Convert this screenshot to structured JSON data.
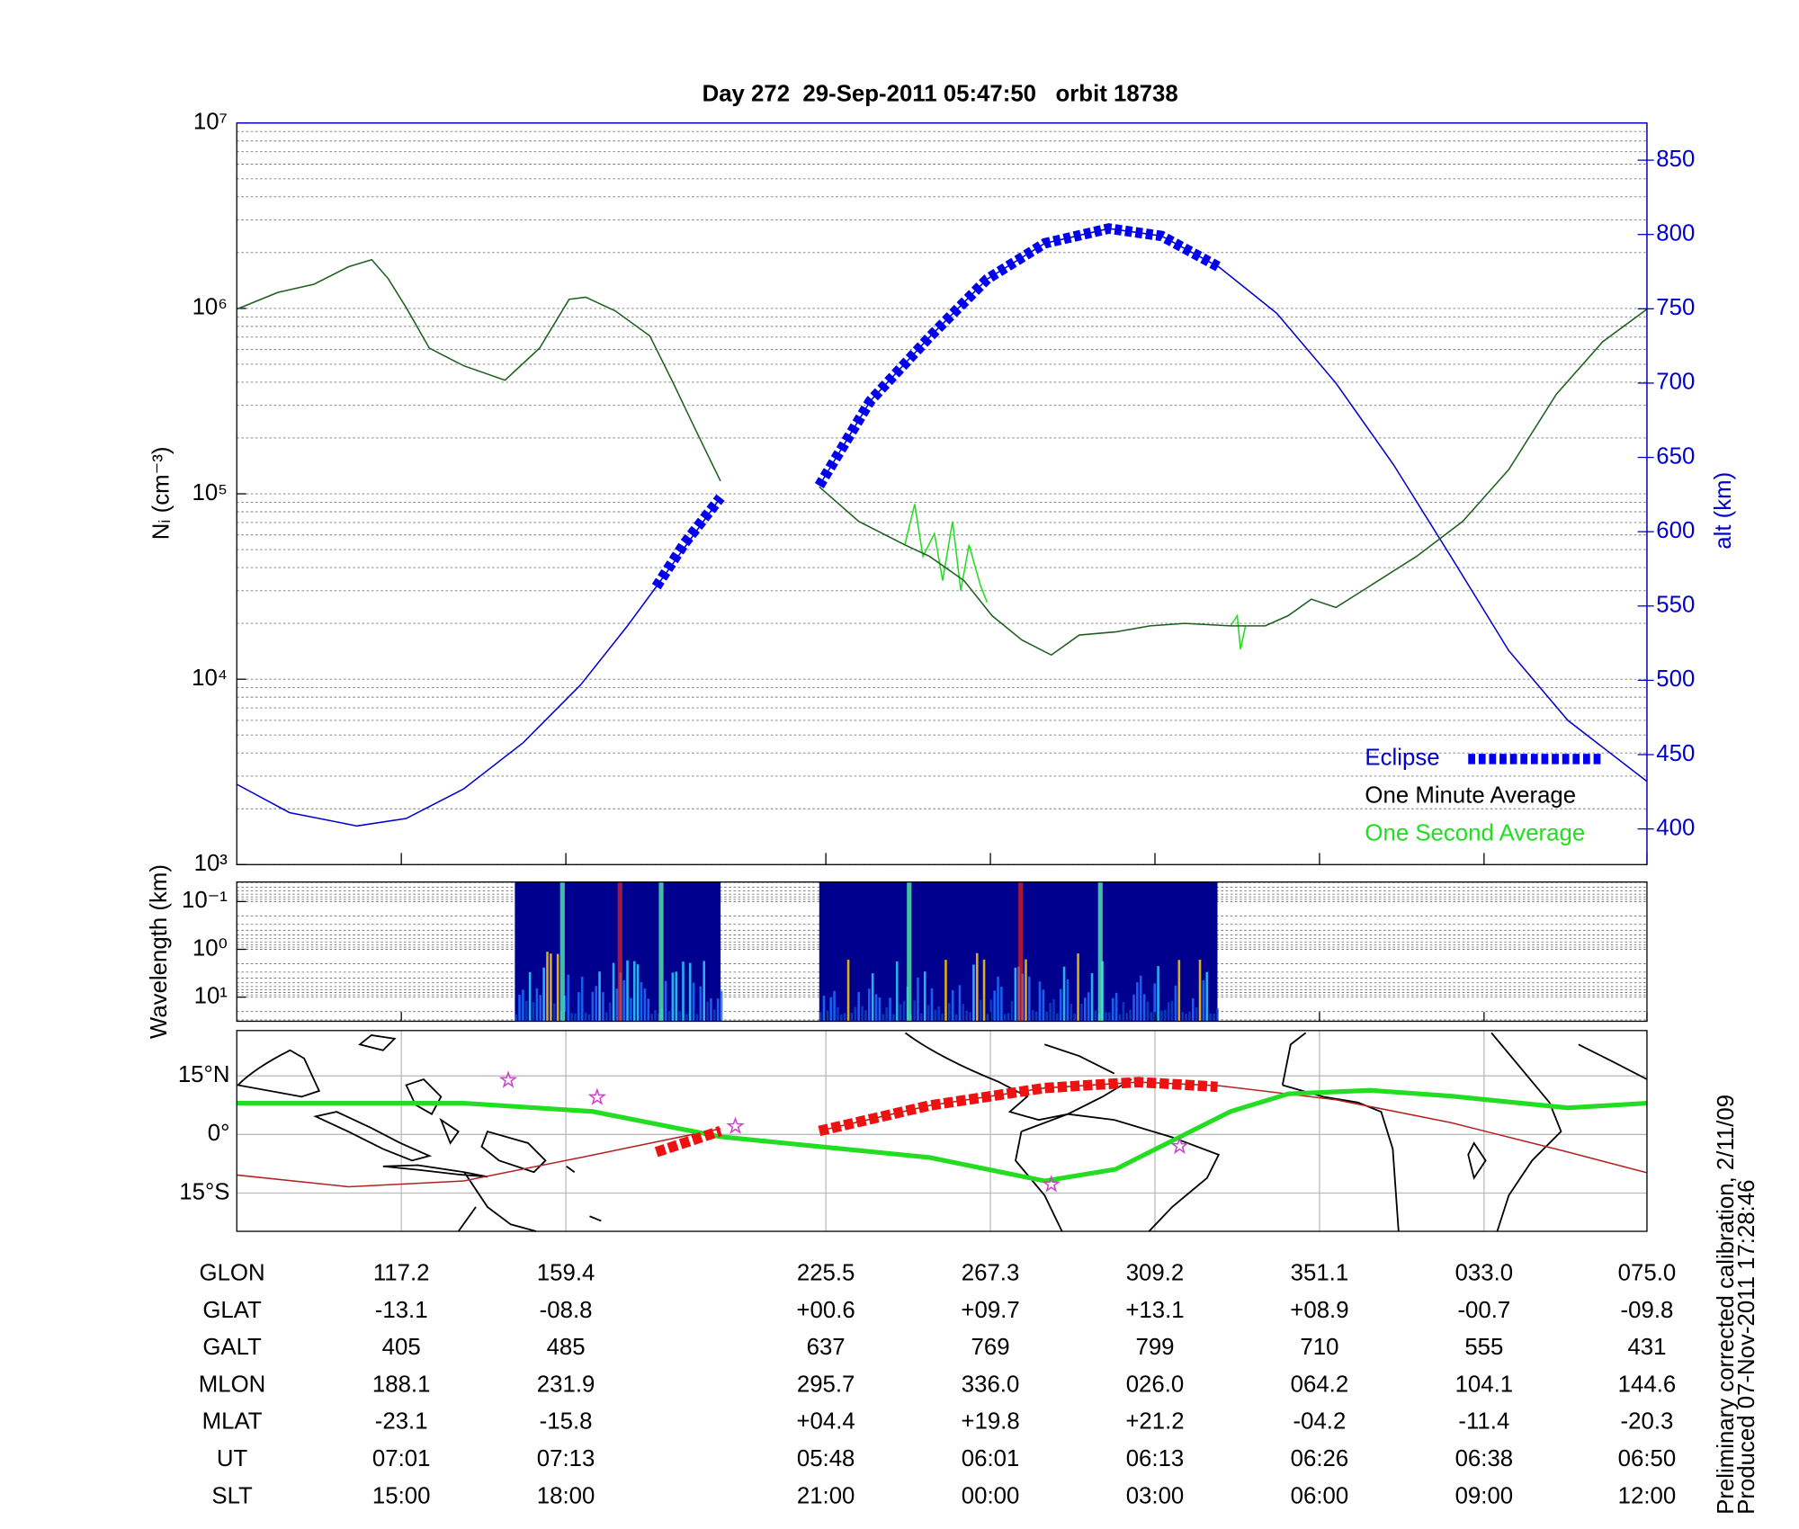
{
  "chart_data": [
    {
      "type": "line",
      "title": "Day 272  29-Sep-2011 05:47:50   orbit 18738",
      "y_label": "Nᵢ (cm⁻³)",
      "y2_label": "alt (km)",
      "xlim": [
        -1,
        7.57
      ],
      "xticks": [
        0,
        1,
        2.58,
        3.58,
        4.58,
        5.58,
        6.58,
        7.57
      ],
      "ylim": [
        1000,
        10000000
      ],
      "yscale": "log",
      "yticks": [
        {
          "value": 1000,
          "label": "10³"
        },
        {
          "value": 10000,
          "label": "10⁴"
        },
        {
          "value": 100000,
          "label": "10⁵"
        },
        {
          "value": 1000000,
          "label": "10⁶"
        },
        {
          "value": 10000000,
          "label": "10⁷"
        }
      ],
      "y2lim": [
        376,
        875
      ],
      "y2ticks": [
        400,
        450,
        500,
        550,
        600,
        650,
        700,
        750,
        800,
        850
      ],
      "y2color": "#0000cc",
      "grid": true,
      "legend": "lower right",
      "series": [
        {
          "name": "Eclipse",
          "color": "#0000ee",
          "label_color": "#0000cc",
          "axis": "y2",
          "style": "dashed-thick",
          "x": [
            1.55,
            1.72,
            1.94,
            null,
            2.54,
            2.85,
            3.21,
            3.56,
            3.91,
            4.3,
            4.62,
            4.97
          ],
          "values": [
            563,
            592,
            623,
            null,
            631,
            688,
            731,
            770,
            794,
            804,
            799,
            778
          ]
        },
        {
          "name": "One Minute Average",
          "color": "#1f5f1f",
          "label_color": "#000000",
          "x": [
            -1,
            -0.75,
            -0.53,
            -0.32,
            -0.18,
            -0.08,
            0.03,
            0.17,
            0.38,
            0.63,
            0.84,
            1.02,
            1.12,
            1.3,
            1.51,
            1.65,
            1.79,
            1.94,
            null,
            2.54,
            2.78,
            3.06,
            3.21,
            3.42,
            3.59,
            3.77,
            3.95,
            4.12,
            4.34,
            4.55,
            4.76,
            5.04,
            5.25,
            5.39,
            5.53,
            5.68,
            5.89,
            6.17,
            6.45,
            6.73,
            7.02,
            7.3,
            7.57
          ],
          "values": [
            990000,
            1220000,
            1350000,
            1680000,
            1830000,
            1450000,
            1010000,
            610000,
            490000,
            410000,
            610000,
            1120000,
            1150000,
            970000,
            710000,
            400000,
            220000,
            117000,
            null,
            109000,
            71000,
            53000,
            46000,
            34000,
            22000,
            16300,
            13500,
            17300,
            18000,
            19400,
            20000,
            19400,
            19400,
            22000,
            27000,
            24400,
            32000,
            46000,
            71000,
            135000,
            345000,
            660000,
            990000
          ]
        },
        {
          "name": "One Second Average",
          "color": "#22dd22",
          "label_color": "#22dd22",
          "x": [
            3.06,
            3.12,
            3.17,
            3.24,
            3.29,
            3.35,
            3.4,
            3.45,
            3.52,
            3.56,
            null,
            5.04,
            5.08,
            5.1,
            5.13
          ],
          "values": [
            53000,
            88000,
            46000,
            61000,
            34000,
            71000,
            30000,
            53000,
            32000,
            26000,
            null,
            19400,
            22000,
            14500,
            19400
          ]
        },
        {
          "color": "#0000cc",
          "axis": "y2",
          "x": [
            -1,
            -0.68,
            -0.27,
            0.03,
            0.38,
            0.74,
            1.09,
            1.37,
            1.55,
            1.94,
            null,
            2.54,
            2.85,
            3.21,
            3.56,
            3.91,
            4.3,
            4.62,
            4.97,
            5.32,
            5.68,
            6.03,
            6.38,
            6.73,
            7.09,
            7.57
          ],
          "values": [
            430,
            411,
            402,
            407,
            427,
            458,
            497,
            536,
            563,
            623,
            null,
            631,
            688,
            731,
            770,
            794,
            804,
            799,
            778,
            747,
            700,
            645,
            583,
            520,
            473,
            432
          ]
        }
      ]
    },
    {
      "type": "heatmap",
      "y_label": "Wavelength (km)",
      "xlim": [
        -1,
        7.57
      ],
      "xticks": [
        0,
        1,
        2.58,
        3.58,
        4.58,
        5.58,
        6.58,
        7.57
      ],
      "ylim": [
        0.039,
        32
      ],
      "yscale": "log",
      "y_reversed": true,
      "yticks": [
        {
          "value": 0.1,
          "label": "10⁻¹"
        },
        {
          "value": 1,
          "label": "10⁰"
        },
        {
          "value": 10,
          "label": "10¹"
        }
      ],
      "grid": true,
      "color": "#00008f",
      "x_ranges": [
        [
          0.69,
          1.94
        ],
        [
          2.54,
          4.96
        ]
      ]
    },
    {
      "type": "map",
      "xlim": [
        -1,
        7.57
      ],
      "xticks": [
        0,
        1,
        2.58,
        3.58,
        4.58,
        5.58,
        6.58,
        7.57
      ],
      "ylim": [
        -24.8,
        26.6
      ],
      "yticks": [
        {
          "value": 15,
          "label": "15°N"
        },
        {
          "value": 0,
          "label": "0°"
        },
        {
          "value": -15,
          "label": "15°S"
        }
      ],
      "grid": true,
      "series": [
        {
          "color": "#b22222",
          "width": 1.2,
          "x": [
            -1,
            -0.32,
            0.38,
            1.09,
            1.94,
            null,
            2.54,
            3.21,
            3.91,
            4.48,
            4.97,
            5.68,
            6.38,
            7.09,
            7.57
          ],
          "values": [
            -10.4,
            -13.4,
            -11.9,
            -5.9,
            1.5,
            null,
            0.9,
            7.4,
            11.9,
            13.4,
            12.5,
            8.9,
            3.0,
            -4.5,
            -9.8
          ]
        },
        {
          "color": "#22dd22",
          "width": 4,
          "x": [
            -1,
            0.38,
            1.16,
            1.94,
            3.21,
            3.91,
            4.34,
            4.69,
            5.04,
            5.39,
            5.89,
            6.38,
            7.09,
            7.57
          ],
          "values": [
            8.0,
            8.0,
            5.9,
            -0.6,
            -5.9,
            -11.9,
            -8.9,
            -1.5,
            5.9,
            10.4,
            11.3,
            9.8,
            6.8,
            8.0
          ]
        },
        {
          "color": "#ee1111",
          "width": 9,
          "style": "dashed-thick",
          "x": [
            1.55,
            1.94,
            null,
            2.54,
            3.21,
            3.91,
            4.48,
            4.96
          ],
          "values": [
            -4.5,
            0.9,
            null,
            0.9,
            7.4,
            11.9,
            13.4,
            12.2
          ]
        }
      ],
      "markers": {
        "color": "#cc44cc",
        "x": [
          0.65,
          1.19,
          2.03,
          3.95,
          4.73
        ],
        "values": [
          13.9,
          9.5,
          2.1,
          -12.8,
          -3.0
        ]
      }
    }
  ],
  "table": {
    "rows": [
      {
        "label": "GLON",
        "values": [
          "117.2",
          "159.4",
          "225.5",
          "267.3",
          "309.2",
          "351.1",
          "033.0",
          "075.0"
        ]
      },
      {
        "label": "GLAT",
        "values": [
          "-13.1",
          "-08.8",
          "+00.6",
          "+09.7",
          "+13.1",
          "+08.9",
          "-00.7",
          "-09.8"
        ]
      },
      {
        "label": "GALT",
        "values": [
          "405",
          "485",
          "637",
          "769",
          "799",
          "710",
          "555",
          "431"
        ]
      },
      {
        "label": "MLON",
        "values": [
          "188.1",
          "231.9",
          "295.7",
          "336.0",
          "026.0",
          "064.2",
          "104.1",
          "144.6"
        ]
      },
      {
        "label": "MLAT",
        "values": [
          "-23.1",
          "-15.8",
          "+04.4",
          "+19.8",
          "+21.2",
          "-04.2",
          "-11.4",
          "-20.3"
        ]
      },
      {
        "label": "UT",
        "values": [
          "07:01",
          "07:13",
          "05:48",
          "06:01",
          "06:13",
          "06:26",
          "06:38",
          "06:50"
        ]
      },
      {
        "label": "SLT",
        "values": [
          "15:00",
          "18:00",
          "21:00",
          "00:00",
          "03:00",
          "06:00",
          "09:00",
          "12:00"
        ]
      }
    ]
  },
  "notes": [
    "Preliminary corrected calibration, 2/11/09",
    "Produced 07-Nov-2011 17:28:46"
  ]
}
